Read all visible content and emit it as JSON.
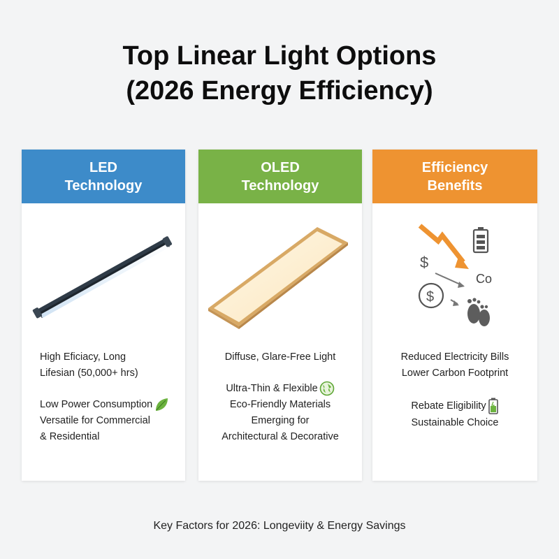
{
  "title": {
    "line1": "Top Linear Light Options",
    "line2": "(2026 Energy Efficiency)"
  },
  "colors": {
    "led_header": "#3d8bc9",
    "oled_header": "#79b247",
    "efficiency_header": "#ee9331",
    "background": "#f3f4f5"
  },
  "cards": [
    {
      "header_line1": "LED",
      "header_line2": "Technology",
      "illustration": "led-tube-fixture",
      "lines": [
        "High Eficiacy, Long",
        "Lifesian (50,000+ hrs)",
        "Low Power Consumption",
        "Versatile for Commercial",
        "& Residential"
      ],
      "icons": [
        "leaf-icon"
      ]
    },
    {
      "header_line1": "OLED",
      "header_line2": "Technology",
      "illustration": "oled-panel",
      "lines": [
        "Diffuse, Glare-Free Light",
        "Ultra-Thin & Flexible",
        "Eco-Friendly Materials",
        "Emerging for",
        "Architectural & Decorative"
      ],
      "icons": [
        "globe-icon"
      ]
    },
    {
      "header_line1": "Efficiency",
      "header_line2": "Benefits",
      "illustration": "savings-diagram",
      "illustration_labels": {
        "dollar": "$",
        "co": "Co"
      },
      "lines": [
        "Reduced Electricity Bills",
        "Lower Carbon Footprint",
        "Rebate Eligibility",
        "Sustainable Choice"
      ],
      "icons": [
        "battery-icon"
      ]
    }
  ],
  "footer": "Key Factors for 2026: Longeviity & Energy Savings"
}
